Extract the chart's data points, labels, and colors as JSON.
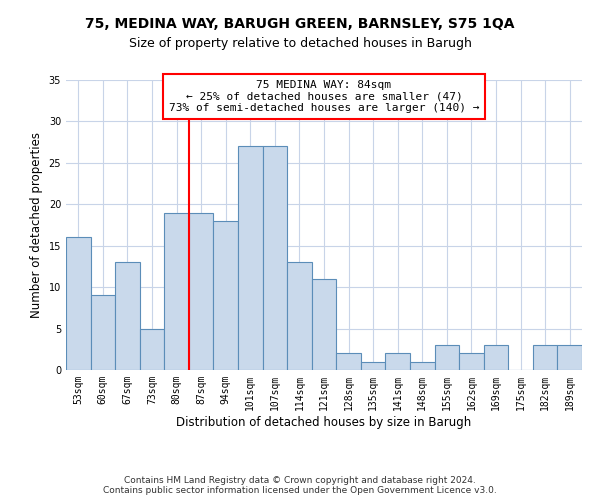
{
  "title1": "75, MEDINA WAY, BARUGH GREEN, BARNSLEY, S75 1QA",
  "title2": "Size of property relative to detached houses in Barugh",
  "xlabel": "Distribution of detached houses by size in Barugh",
  "ylabel": "Number of detached properties",
  "categories": [
    "53sqm",
    "60sqm",
    "67sqm",
    "73sqm",
    "80sqm",
    "87sqm",
    "94sqm",
    "101sqm",
    "107sqm",
    "114sqm",
    "121sqm",
    "128sqm",
    "135sqm",
    "141sqm",
    "148sqm",
    "155sqm",
    "162sqm",
    "169sqm",
    "175sqm",
    "182sqm",
    "189sqm"
  ],
  "values": [
    16,
    9,
    13,
    5,
    19,
    19,
    18,
    27,
    27,
    13,
    11,
    2,
    1,
    2,
    1,
    3,
    2,
    3,
    0,
    3,
    3
  ],
  "bar_color": "#c9d9eb",
  "bar_edge_color": "#5b8db8",
  "annotation_line1": "75 MEDINA WAY: 84sqm",
  "annotation_line2": "← 25% of detached houses are smaller (47)",
  "annotation_line3": "73% of semi-detached houses are larger (140) →",
  "annotation_box_color": "white",
  "annotation_box_edge_color": "red",
  "vline_color": "red",
  "vline_x_index": 4.5,
  "ylim": [
    0,
    35
  ],
  "yticks": [
    0,
    5,
    10,
    15,
    20,
    25,
    30,
    35
  ],
  "bg_color": "#ffffff",
  "grid_color": "#c8d4e8",
  "footer_text": "Contains HM Land Registry data © Crown copyright and database right 2024.\nContains public sector information licensed under the Open Government Licence v3.0.",
  "title1_fontsize": 10,
  "title2_fontsize": 9,
  "xlabel_fontsize": 8.5,
  "ylabel_fontsize": 8.5,
  "tick_fontsize": 7,
  "annotation_fontsize": 8,
  "footer_fontsize": 6.5
}
